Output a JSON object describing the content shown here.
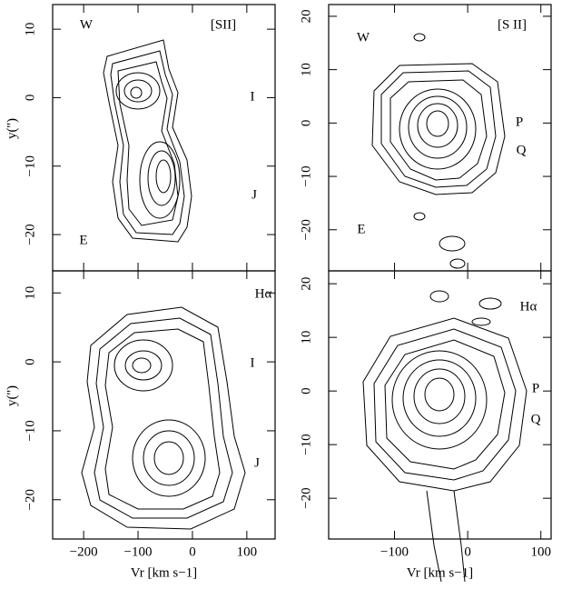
{
  "chart_data": [
    {
      "type": "contour",
      "annotations": [
        "W",
        "[SII]",
        "I",
        "J",
        "E"
      ],
      "ylabel": "y('')",
      "xlim": [
        -257,
        152
      ],
      "ylim": [
        -25.3,
        13.6
      ],
      "xticks": [
        -200,
        -100,
        0,
        100
      ],
      "yticks": [
        {
          "value": -20,
          "label": "−20"
        },
        {
          "value": -10,
          "label": "−10"
        },
        0,
        10
      ]
    },
    {
      "type": "contour",
      "annotations": [
        "W",
        "[S II]",
        "P",
        "Q",
        "E"
      ],
      "xlim": [
        -190,
        114
      ],
      "ylim": [
        -27.7,
        22.2
      ],
      "xticks": [
        -100,
        0,
        100
      ],
      "yticks": [
        {
          "value": -20,
          "label": "−20"
        },
        {
          "value": -10,
          "label": "−10"
        },
        0,
        10,
        20
      ]
    },
    {
      "type": "contour",
      "annotations": [
        "Hα",
        "I",
        "J"
      ],
      "ylabel": "y('')",
      "xlabel": "Vr [km s−1]",
      "xlim": [
        -257,
        152
      ],
      "ylim": [
        -25.7,
        13.2
      ],
      "xticks": [
        {
          "value": -200,
          "label": "−200"
        },
        {
          "value": -100,
          "label": "−100"
        },
        0,
        100
      ],
      "yticks": [
        {
          "value": -20,
          "label": "−20"
        },
        {
          "value": -10,
          "label": "−10"
        },
        0,
        10
      ]
    },
    {
      "type": "contour",
      "annotations": [
        "Hα",
        "P",
        "Q"
      ],
      "xlabel": "Vr [km s−1]",
      "xlim": [
        -190,
        114
      ],
      "ylim": [
        -27.6,
        22.4
      ],
      "xticks": [
        {
          "value": -100,
          "label": "−100"
        },
        0,
        100
      ],
      "yticks": [
        {
          "value": -20,
          "label": "−20"
        },
        {
          "value": -10,
          "label": "−10"
        },
        0,
        10,
        20
      ]
    }
  ]
}
